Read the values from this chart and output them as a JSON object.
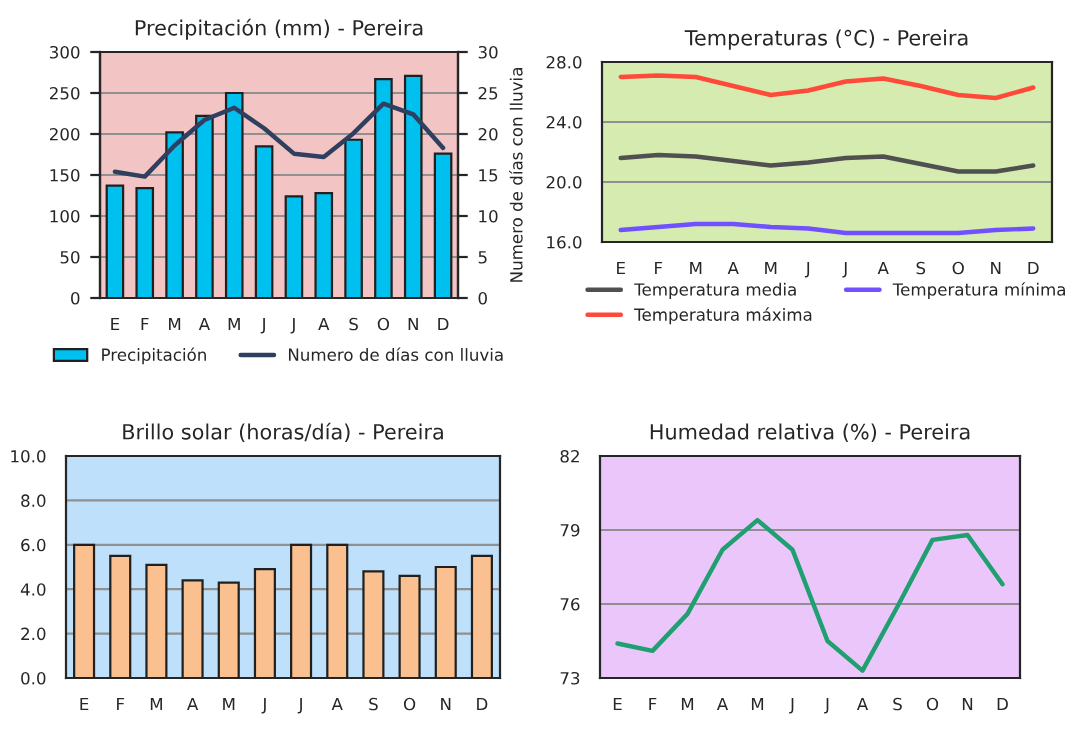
{
  "chart_data": [
    {
      "type": "bar",
      "title": "Precipitación (mm) - Pereira",
      "y2label": "Numero de días con lluvia",
      "categories": [
        "E",
        "F",
        "M",
        "A",
        "M",
        "J",
        "J",
        "A",
        "S",
        "O",
        "N",
        "D"
      ],
      "series": [
        {
          "name": "Precipitación",
          "type": "bar",
          "color": "#00c0f0",
          "values": [
            137,
            134,
            202,
            222,
            250,
            185,
            124,
            128,
            193,
            267,
            271,
            176
          ]
        },
        {
          "name": "Numero de días con lluvia",
          "type": "line",
          "axis": "y2",
          "color": "#2f3f60",
          "values": [
            15.4,
            14.8,
            18.6,
            21.7,
            23.2,
            20.7,
            17.6,
            17.2,
            20.1,
            23.7,
            22.4,
            18.3
          ]
        }
      ],
      "ylim": [
        0,
        300
      ],
      "yticks": [
        0,
        50,
        100,
        150,
        200,
        250,
        300
      ],
      "y2lim": [
        0,
        30
      ],
      "y2ticks": [
        0,
        5,
        10,
        15,
        20,
        25,
        30
      ],
      "grid": "y",
      "legend": "bottom"
    },
    {
      "type": "line",
      "title": "Temperaturas (°C) - Pereira",
      "categories": [
        "E",
        "F",
        "M",
        "A",
        "M",
        "J",
        "J",
        "A",
        "S",
        "O",
        "N",
        "D"
      ],
      "series": [
        {
          "name": "Temperatura media",
          "color": "#505050",
          "values": [
            21.6,
            21.8,
            21.7,
            21.4,
            21.1,
            21.3,
            21.6,
            21.7,
            21.2,
            20.7,
            20.7,
            21.1
          ]
        },
        {
          "name": "Temperatura máxima",
          "color": "#ff4a3a",
          "values": [
            27.0,
            27.1,
            27.0,
            26.4,
            25.8,
            26.1,
            26.7,
            26.9,
            26.4,
            25.8,
            25.6,
            26.3
          ]
        },
        {
          "name": "Temperatura mínima",
          "color": "#7050ff",
          "values": [
            16.8,
            17.0,
            17.2,
            17.2,
            17.0,
            16.9,
            16.6,
            16.6,
            16.6,
            16.6,
            16.8,
            16.9
          ]
        }
      ],
      "ylim": [
        16,
        28
      ],
      "yticks": [
        {
          "value": 16,
          "label": "16.0"
        },
        {
          "value": 20,
          "label": "20.0"
        },
        {
          "value": 24,
          "label": "24.0"
        },
        {
          "value": 28,
          "label": "28.0"
        }
      ],
      "grid": "y",
      "legend": "bottom"
    },
    {
      "type": "bar",
      "title": "Brillo solar (horas/día) - Pereira",
      "categories": [
        "E",
        "F",
        "M",
        "A",
        "M",
        "J",
        "J",
        "A",
        "S",
        "O",
        "N",
        "D"
      ],
      "series": [
        {
          "color": "#fac090",
          "values": [
            6.0,
            5.5,
            5.1,
            4.4,
            4.3,
            4.9,
            6.0,
            6.0,
            4.8,
            4.6,
            5.0,
            5.5
          ]
        }
      ],
      "ylim": [
        0,
        10
      ],
      "yticks": [
        {
          "value": 0,
          "label": "0.0"
        },
        {
          "value": 2,
          "label": "2.0"
        },
        {
          "value": 4,
          "label": "4.0"
        },
        {
          "value": 6,
          "label": "6.0"
        },
        {
          "value": 8,
          "label": "8.0"
        },
        {
          "value": 10,
          "label": "10.0"
        }
      ],
      "grid": "y"
    },
    {
      "type": "line",
      "title": "Humedad relativa (%) - Pereira",
      "categories": [
        "E",
        "F",
        "M",
        "A",
        "M",
        "J",
        "J",
        "A",
        "S",
        "O",
        "N",
        "D"
      ],
      "series": [
        {
          "color": "#20a070",
          "values": [
            74.4,
            74.1,
            75.6,
            78.2,
            79.4,
            78.2,
            74.5,
            73.3,
            75.9,
            78.6,
            78.8,
            76.8
          ]
        }
      ],
      "ylim": [
        73,
        82
      ],
      "yticks": [
        73,
        76,
        79,
        82
      ],
      "grid": "y"
    }
  ]
}
